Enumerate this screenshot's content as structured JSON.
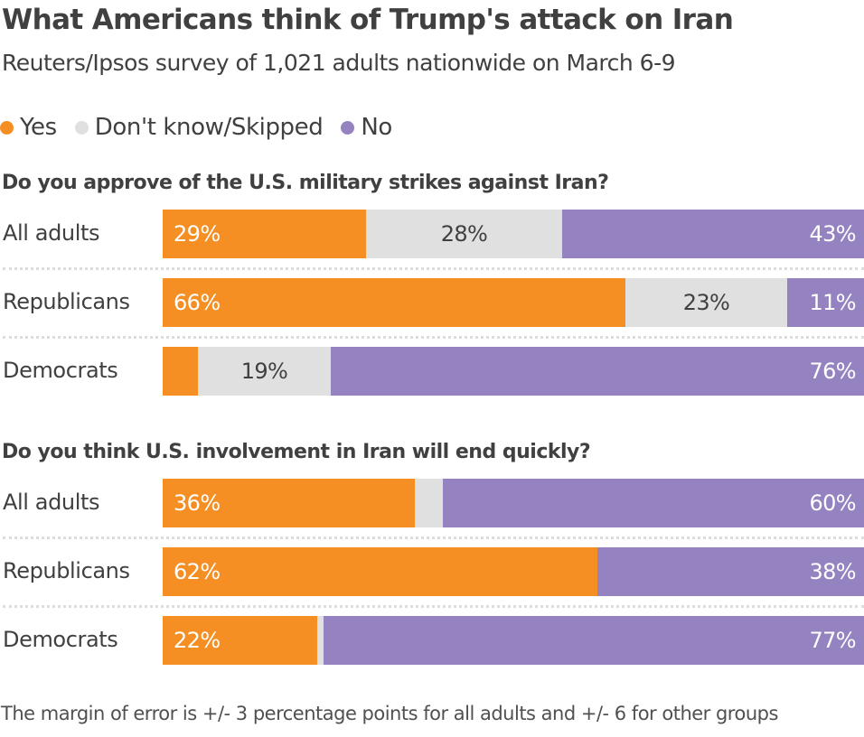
{
  "title": "What Americans think of Trump's attack on Iran",
  "subtitle": "Reuters/Ipsos survey of 1,021 adults nationwide on March 6-9",
  "legend": [
    {
      "label": "Yes",
      "color": "#f58f24"
    },
    {
      "label": "Don't know/Skipped",
      "color": "#e0e0e0"
    },
    {
      "label": "No",
      "color": "#9583c1"
    }
  ],
  "note": "The margin of error is +/- 3 percentage points for all adults and +/- 6 for other groups",
  "chart_data": {
    "type": "bar",
    "orientation": "horizontal-stacked-100",
    "title": "What Americans think of Trump's attack on Iran",
    "subtitle": "Reuters/Ipsos survey of 1,021 adults nationwide on March 6-9",
    "xlim": [
      0,
      100
    ],
    "legend_position": "top-left",
    "series_names": [
      "Yes",
      "Don't know/Skipped",
      "No"
    ],
    "colors": {
      "Yes": "#f58f24",
      "Don't know/Skipped": "#e0e0e0",
      "No": "#9583c1"
    },
    "panels": [
      {
        "question": "Do you approve of the U.S. military strikes against Iran?",
        "categories": [
          "All adults",
          "Republicans",
          "Democrats"
        ],
        "series": [
          {
            "name": "Yes",
            "values": [
              29,
              66,
              5
            ],
            "labels": [
              "29%",
              "66%",
              ""
            ]
          },
          {
            "name": "Don't know/Skipped",
            "values": [
              28,
              23,
              19
            ],
            "labels": [
              "28%",
              "23%",
              "19%"
            ]
          },
          {
            "name": "No",
            "values": [
              43,
              11,
              76
            ],
            "labels": [
              "43%",
              "11%",
              "76%"
            ]
          }
        ]
      },
      {
        "question": "Do you think U.S. involvement in Iran will end quickly?",
        "categories": [
          "All adults",
          "Republicans",
          "Democrats"
        ],
        "series": [
          {
            "name": "Yes",
            "values": [
              36,
              62,
              22
            ],
            "labels": [
              "36%",
              "62%",
              "22%"
            ]
          },
          {
            "name": "Don't know/Skipped",
            "values": [
              4,
              0,
              1
            ],
            "labels": [
              "",
              "",
              ""
            ]
          },
          {
            "name": "No",
            "values": [
              60,
              38,
              77
            ],
            "labels": [
              "60%",
              "38%",
              "77%"
            ]
          }
        ]
      }
    ]
  }
}
